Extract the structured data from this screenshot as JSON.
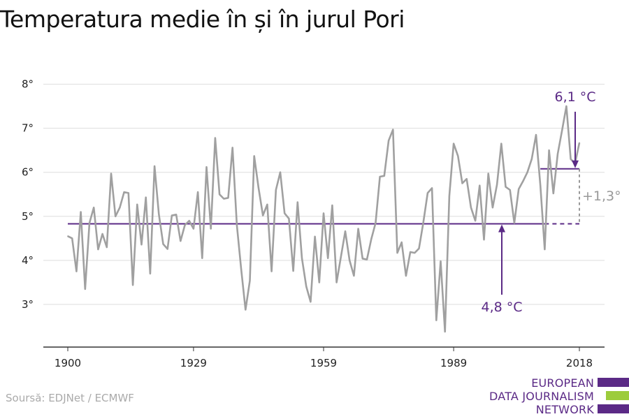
{
  "title": "Temperatura medie în și în jurul Pori",
  "source": "Soursă: EDJNet / ECMWF",
  "logo": {
    "lines": [
      "EUROPEAN",
      "DATA JOURNALISM",
      "NETWORK"
    ],
    "colors": [
      "#5b2a86",
      "#9ccc3c",
      "#5b2a86"
    ]
  },
  "colors": {
    "series": "#a0a0a0",
    "accent": "#5b2a86",
    "diff": "#999999",
    "grid": "#dddddd",
    "axis": "#333333"
  },
  "chart_data": {
    "type": "line",
    "title": "Temperatura medie în și în jurul Pori",
    "xlabel": "",
    "ylabel": "",
    "xlim": [
      1900,
      2018
    ],
    "ylim": [
      2.0,
      8.2
    ],
    "y_ticks": [
      3,
      4,
      5,
      6,
      7,
      8
    ],
    "y_tick_labels": [
      "3°",
      "4°",
      "5°",
      "6°",
      "7°",
      "8°"
    ],
    "x_ticks": [
      1900,
      1929,
      1959,
      1989,
      2018
    ],
    "x_tick_labels": [
      "1900",
      "1929",
      "1959",
      "1989",
      "2018"
    ],
    "grid": true,
    "x": [
      1900,
      1901,
      1902,
      1903,
      1904,
      1905,
      1906,
      1907,
      1908,
      1909,
      1910,
      1911,
      1912,
      1913,
      1914,
      1915,
      1916,
      1917,
      1918,
      1919,
      1920,
      1921,
      1922,
      1923,
      1924,
      1925,
      1926,
      1927,
      1928,
      1929,
      1930,
      1931,
      1932,
      1933,
      1934,
      1935,
      1936,
      1937,
      1938,
      1939,
      1940,
      1941,
      1942,
      1943,
      1944,
      1945,
      1946,
      1947,
      1948,
      1949,
      1950,
      1951,
      1952,
      1953,
      1954,
      1955,
      1956,
      1957,
      1958,
      1959,
      1960,
      1961,
      1962,
      1963,
      1964,
      1965,
      1966,
      1967,
      1968,
      1969,
      1970,
      1971,
      1972,
      1973,
      1974,
      1975,
      1976,
      1977,
      1978,
      1979,
      1980,
      1981,
      1982,
      1983,
      1984,
      1985,
      1986,
      1987,
      1988,
      1989,
      1990,
      1991,
      1992,
      1993,
      1994,
      1995,
      1996,
      1997,
      1998,
      1999,
      2000,
      2001,
      2002,
      2003,
      2004,
      2005,
      2006,
      2007,
      2008,
      2009,
      2010,
      2011,
      2012,
      2013,
      2014,
      2015,
      2016,
      2017,
      2018
    ],
    "series": [
      {
        "values": [
          4.55,
          4.5,
          3.75,
          5.1,
          3.35,
          4.85,
          5.2,
          4.25,
          4.6,
          4.3,
          5.97,
          5.0,
          5.2,
          5.55,
          5.53,
          3.44,
          5.27,
          4.36,
          5.43,
          3.7,
          6.14,
          5.05,
          4.37,
          4.26,
          5.02,
          5.04,
          4.44,
          4.8,
          4.9,
          4.72,
          5.55,
          4.05,
          6.12,
          4.72,
          6.78,
          5.5,
          5.4,
          5.42,
          6.56,
          4.8,
          3.8,
          2.88,
          3.54,
          6.37,
          5.65,
          5.02,
          5.27,
          3.75,
          5.6,
          6.0,
          5.07,
          4.95,
          3.76,
          5.32,
          4.05,
          3.41,
          3.06,
          4.54,
          3.5,
          5.07,
          4.05,
          5.25,
          3.5,
          4.08,
          4.66,
          4.0,
          3.65,
          4.72,
          4.04,
          4.02,
          4.48,
          4.85,
          5.9,
          5.92,
          6.72,
          6.97,
          4.17,
          4.41,
          3.65,
          4.19,
          4.17,
          4.27,
          4.86,
          5.53,
          5.64,
          2.64,
          3.98,
          2.38,
          5.46,
          6.65,
          6.37,
          5.75,
          5.85,
          5.2,
          4.9,
          5.7,
          4.47,
          5.97,
          5.2,
          5.72,
          6.65,
          5.67,
          5.6,
          4.85,
          5.62,
          5.8,
          6.0,
          6.3,
          6.85,
          5.7,
          4.25,
          6.5,
          5.52,
          6.42,
          6.95,
          7.5,
          6.3,
          6.2,
          6.67
        ]
      }
    ],
    "baseline": {
      "value": 4.83,
      "from": 1900,
      "to": 2010
    },
    "baseline_dashed": {
      "from": 2010,
      "to": 2018
    },
    "recent": {
      "value": 6.08,
      "from": 2009,
      "to": 2018
    },
    "annotations": {
      "recent_label": "6,1 °C",
      "baseline_label": "4,8 °C",
      "diff_label": "+1,3°"
    }
  }
}
